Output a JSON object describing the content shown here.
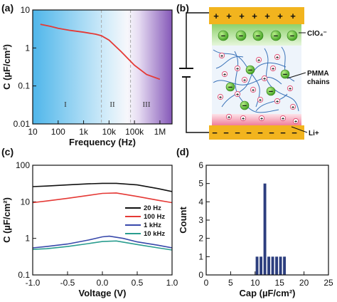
{
  "chart_data": [
    {
      "panel": "(a)",
      "type": "line",
      "xlabel": "Frequency (Hz)",
      "ylabel": "C (µF/cm²)",
      "xscale": "log",
      "yscale": "log",
      "xlim": [
        10,
        3000000
      ],
      "ylim": [
        0.01,
        10
      ],
      "x_ticks": [
        "10",
        "100",
        "1k",
        "10k",
        "100k",
        "1M"
      ],
      "y_ticks": [
        "0.01",
        "0.1",
        "1",
        "10"
      ],
      "region_labels": [
        "I",
        "II",
        "III"
      ],
      "region_bounds": [
        5000,
        70000
      ],
      "series": [
        {
          "color": "#e53935",
          "x": [
            20,
            50,
            100,
            300,
            1000,
            3000,
            5000,
            10000,
            30000,
            100000,
            300000,
            1000000
          ],
          "y": [
            4.2,
            3.7,
            3.3,
            2.9,
            2.6,
            2.3,
            2.1,
            1.6,
            0.8,
            0.35,
            0.2,
            0.15
          ]
        }
      ]
    },
    {
      "panel": "(c)",
      "type": "line",
      "xlabel": "Voltage (V)",
      "ylabel": "C (µF/cm²)",
      "yscale": "log",
      "xlim": [
        -1.0,
        1.0
      ],
      "ylim": [
        0.1,
        100
      ],
      "x_ticks": [
        "-1.0",
        "-0.5",
        "0.0",
        "0.5",
        "1.0"
      ],
      "y_ticks": [
        "0.1",
        "1",
        "10",
        "100"
      ],
      "legend": "center-right",
      "series": [
        {
          "name": "20 Hz",
          "color": "#111111",
          "x": [
            -1.0,
            -0.8,
            -0.5,
            -0.2,
            0.0,
            0.2,
            0.5,
            0.8,
            1.0
          ],
          "y": [
            26,
            27,
            29,
            31,
            32,
            32,
            29,
            23,
            19
          ]
        },
        {
          "name": "100 Hz",
          "color": "#e53935",
          "x": [
            -1.0,
            -0.8,
            -0.5,
            -0.2,
            0.0,
            0.2,
            0.5,
            0.8,
            1.0
          ],
          "y": [
            9.5,
            10.5,
            12.5,
            15,
            17,
            17.5,
            14,
            11,
            9.5
          ]
        },
        {
          "name": "1 kHz",
          "color": "#3949ab",
          "x": [
            -1.0,
            -0.8,
            -0.5,
            -0.2,
            0.0,
            0.1,
            0.3,
            0.5,
            0.8,
            1.0
          ],
          "y": [
            0.55,
            0.6,
            0.7,
            0.9,
            1.1,
            1.15,
            1.0,
            0.8,
            0.65,
            0.55
          ]
        },
        {
          "name": "10 kHz",
          "color": "#2a9d8f",
          "x": [
            -1.0,
            -0.8,
            -0.5,
            -0.2,
            0.0,
            0.2,
            0.5,
            0.8,
            1.0
          ],
          "y": [
            0.5,
            0.52,
            0.6,
            0.72,
            0.82,
            0.85,
            0.68,
            0.55,
            0.48
          ]
        }
      ]
    },
    {
      "panel": "(d)",
      "type": "bar",
      "xlabel": "Cap (µF/cm²)",
      "ylabel": "Count",
      "xlim": [
        0,
        25
      ],
      "ylim": [
        0,
        6
      ],
      "x_ticks": [
        "0",
        "5",
        "10",
        "15",
        "20",
        "25"
      ],
      "y_ticks": [
        "0",
        "1",
        "2",
        "3",
        "4",
        "5",
        "6"
      ],
      "bin_width": 0.8,
      "bins": [
        10.0,
        10.8,
        11.6,
        12.4,
        13.2,
        14.0,
        14.8,
        15.6
      ],
      "values": [
        1,
        1,
        5,
        1,
        1,
        1,
        1,
        1
      ],
      "color": "#2c3e7e"
    }
  ],
  "diagram": {
    "panel": "(b)",
    "top_signs": [
      "+",
      "+",
      "+",
      "+",
      "+",
      "+",
      "+"
    ],
    "bottom_signs": [
      "−",
      "−",
      "−",
      "−",
      "−",
      "−",
      "−",
      "−"
    ],
    "label_anion": "ClO₄⁻",
    "label_polymer_1": "PMMA",
    "label_polymer_2": "chains",
    "label_cation": "Li+",
    "anion_sign": "−",
    "cation_sign": "+"
  }
}
